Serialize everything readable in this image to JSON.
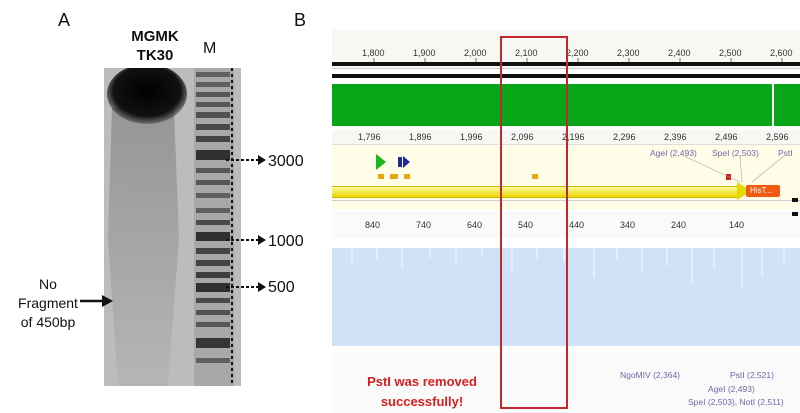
{
  "panels": {
    "a_label": "A",
    "b_label": "B"
  },
  "gel": {
    "lane_label": [
      "MGMK",
      "TK30"
    ],
    "marker_label": "M",
    "size_markers": [
      "3000",
      "1000",
      "500"
    ],
    "note": [
      "No",
      "Fragment",
      "of 450bp"
    ]
  },
  "map": {
    "top_ruler": [
      "1,800",
      "1,900",
      "2,000",
      "2,100",
      "2,200",
      "2,300",
      "2,400",
      "2,500",
      "2,600"
    ],
    "mid_ruler": [
      "1,796",
      "1,896",
      "1,996",
      "2,096",
      "2,196",
      "2,296",
      "2,396",
      "2,496",
      "2,596"
    ],
    "rev_ruler": [
      "840",
      "740",
      "640",
      "540",
      "440",
      "340",
      "240",
      "140"
    ],
    "sites_top": [
      "AgeI (2,493)",
      "SpeI (2,503)",
      "PstI"
    ],
    "feature_label": "HisT...",
    "sites_bottom": [
      "NgoMIV (2,364)",
      "PstI (2,521)",
      "AgeI (2,493)",
      "SpeI (2,503), NotI (2,511)"
    ],
    "message": [
      "PstI was removed",
      "successfully!"
    ],
    "colors": {
      "highlight_box": "#c0282d",
      "feature_arrow": "#f2e400",
      "track": "#0aa61a",
      "coverage": "#cfe2f7"
    }
  }
}
